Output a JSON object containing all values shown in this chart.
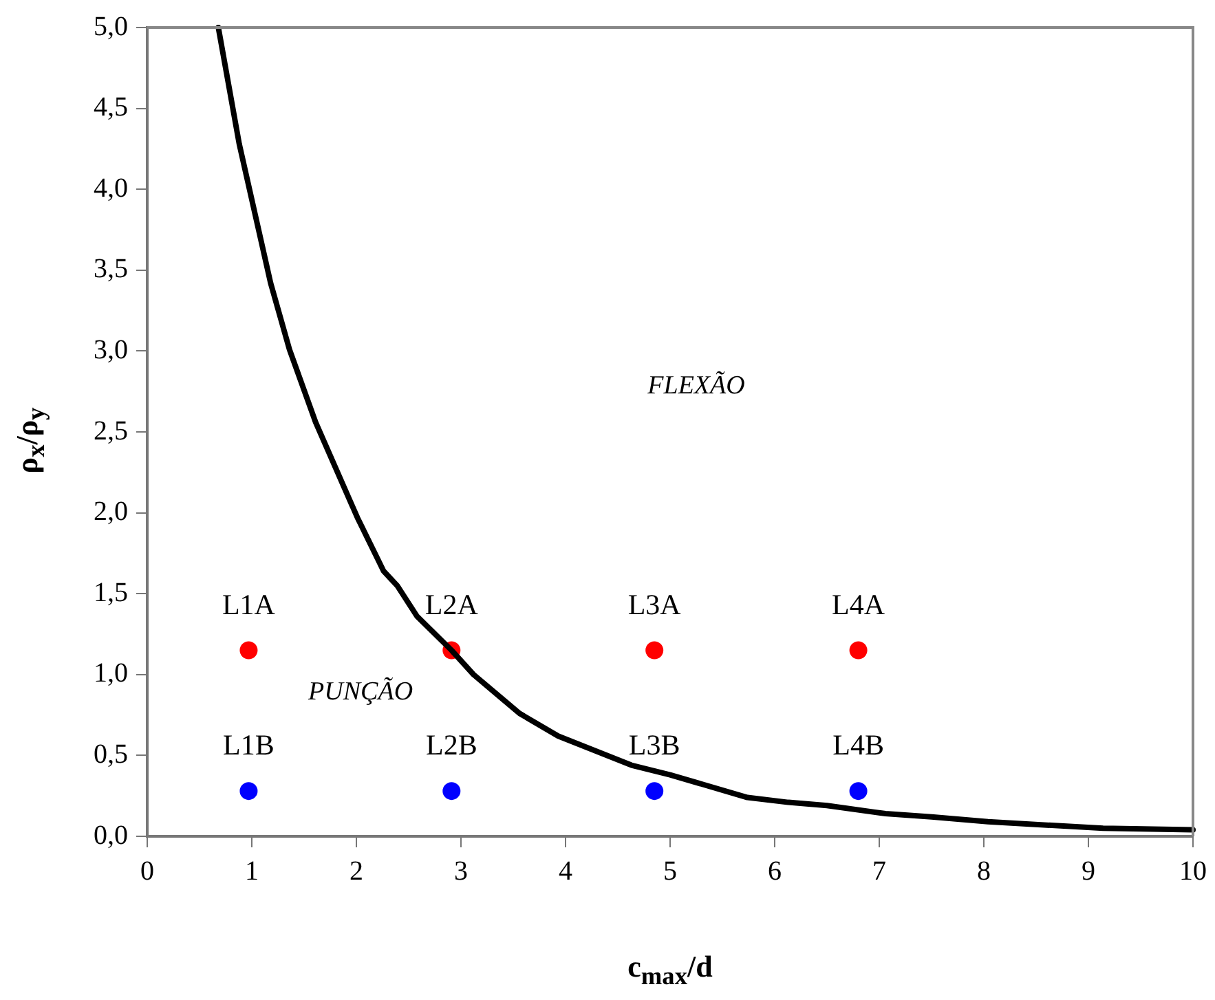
{
  "chart_data": {
    "type": "scatter",
    "xlabel": "c$_{max}$/d",
    "ylabel": "ρ$_{x}$/ρ$_{y}$",
    "xlim": [
      0,
      10
    ],
    "ylim": [
      0,
      5
    ],
    "xticks": [
      {
        "value": 0,
        "label": "0"
      },
      {
        "value": 1,
        "label": "1"
      },
      {
        "value": 2,
        "label": "2"
      },
      {
        "value": 3,
        "label": "3"
      },
      {
        "value": 4,
        "label": "4"
      },
      {
        "value": 5,
        "label": "5"
      },
      {
        "value": 6,
        "label": "6"
      },
      {
        "value": 7,
        "label": "7"
      },
      {
        "value": 8,
        "label": "8"
      },
      {
        "value": 9,
        "label": "9"
      },
      {
        "value": 10,
        "label": "10"
      }
    ],
    "yticks": [
      {
        "value": 0,
        "label": "0,0"
      },
      {
        "value": 0.5,
        "label": "0,5"
      },
      {
        "value": 1,
        "label": "1,0"
      },
      {
        "value": 1.5,
        "label": "1,5"
      },
      {
        "value": 2,
        "label": "2,0"
      },
      {
        "value": 2.5,
        "label": "2,5"
      },
      {
        "value": 3,
        "label": "3,0"
      },
      {
        "value": 3.5,
        "label": "3,5"
      },
      {
        "value": 4,
        "label": "4,0"
      },
      {
        "value": 4.5,
        "label": "4,5"
      },
      {
        "value": 5,
        "label": "5,0"
      }
    ],
    "grid": false,
    "legend": false,
    "series": [
      {
        "type": "line",
        "color": "#000000",
        "marker": "none",
        "line_style": "solid",
        "x": [
          0.68,
          0.88,
          1.18,
          1.36,
          1.61,
          2.01,
          2.26,
          2.39,
          2.58,
          2.91,
          3.12,
          3.56,
          3.93,
          4.63,
          5.0,
          5.74,
          6.13,
          6.5,
          7.06,
          7.5,
          8.04,
          9.14,
          10.0
        ],
        "values": [
          5.0,
          4.28,
          3.42,
          3.01,
          2.56,
          1.97,
          1.64,
          1.55,
          1.36,
          1.15,
          1.0,
          0.76,
          0.62,
          0.44,
          0.38,
          0.24,
          0.21,
          0.19,
          0.14,
          0.12,
          0.09,
          0.05,
          0.04
        ]
      },
      {
        "type": "scatter",
        "color": "#ff0000",
        "marker": "circle",
        "x": [
          0.97,
          2.91,
          4.85,
          6.8
        ],
        "values": [
          1.15,
          1.15,
          1.15,
          1.15
        ]
      },
      {
        "type": "scatter",
        "color": "#0000ff",
        "marker": "circle",
        "x": [
          0.97,
          2.91,
          4.85,
          6.8
        ],
        "values": [
          0.28,
          0.28,
          0.28,
          0.28
        ]
      }
    ],
    "annotations": [
      {
        "text": "L1A",
        "x": 0.97,
        "y": 1.15
      },
      {
        "text": "L2A",
        "x": 2.91,
        "y": 1.15
      },
      {
        "text": "L3A",
        "x": 4.85,
        "y": 1.15
      },
      {
        "text": "L4A",
        "x": 6.8,
        "y": 1.15
      },
      {
        "text": "L1B",
        "x": 0.97,
        "y": 0.28
      },
      {
        "text": "L2B",
        "x": 2.91,
        "y": 0.28
      },
      {
        "text": "L3B",
        "x": 4.85,
        "y": 0.28
      },
      {
        "text": "L4B",
        "x": 6.8,
        "y": 0.28
      },
      "FLEXÃO",
      "PUNÇÃO"
    ]
  }
}
